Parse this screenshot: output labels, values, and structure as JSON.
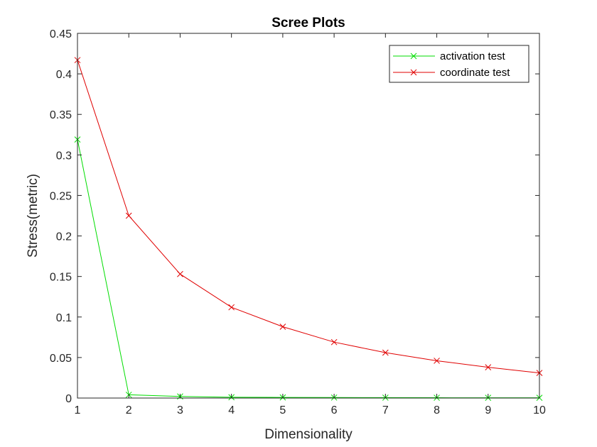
{
  "chart_data": {
    "type": "line",
    "title": "Scree Plots",
    "xlabel": "Dimensionality",
    "ylabel": "Stress(metric)",
    "x": [
      1,
      2,
      3,
      4,
      5,
      6,
      7,
      8,
      9,
      10
    ],
    "xlim": [
      1,
      10
    ],
    "ylim": [
      0,
      0.45
    ],
    "xticks": [
      "1",
      "2",
      "3",
      "4",
      "5",
      "6",
      "7",
      "8",
      "9",
      "10"
    ],
    "yticks": [
      "0",
      "0.05",
      "0.1",
      "0.15",
      "0.2",
      "0.25",
      "0.3",
      "0.35",
      "0.4",
      "0.45"
    ],
    "grid": false,
    "legend_position": "top-right",
    "series": [
      {
        "name": "activation test",
        "color": "#00dd00",
        "marker": "x",
        "values": [
          0.319,
          0.004,
          0.002,
          0.001,
          0.0008,
          0.0006,
          0.0005,
          0.0004,
          0.0003,
          0.0003
        ]
      },
      {
        "name": "coordinate test",
        "color": "#e00000",
        "marker": "x",
        "values": [
          0.417,
          0.225,
          0.153,
          0.112,
          0.088,
          0.069,
          0.056,
          0.046,
          0.038,
          0.031
        ]
      }
    ]
  }
}
